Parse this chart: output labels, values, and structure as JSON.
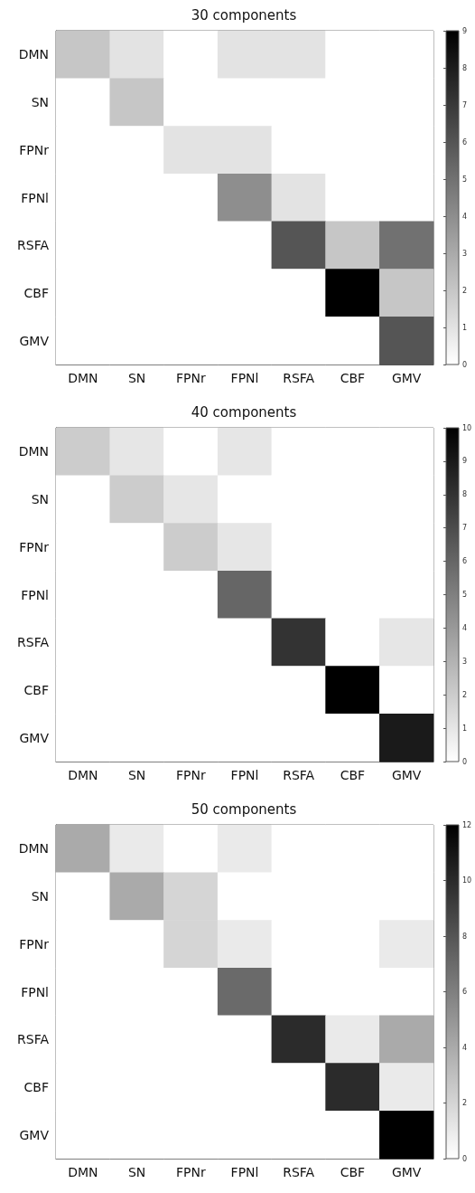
{
  "chart_data": [
    {
      "type": "heatmap",
      "title": "30 components",
      "categories": [
        "DMN",
        "SN",
        "FPNr",
        "FPNl",
        "RSFA",
        "CBF",
        "GMV"
      ],
      "y_categories": [
        "DMN",
        "SN",
        "FPNr",
        "FPNl",
        "RSFA",
        "CBF",
        "GMV"
      ],
      "cells": [
        [
          2,
          1,
          0,
          1,
          1,
          0,
          0
        ],
        [
          0,
          2,
          0,
          0,
          0,
          0,
          0
        ],
        [
          0,
          0,
          1,
          1,
          0,
          0,
          0
        ],
        [
          0,
          0,
          0,
          4,
          1,
          0,
          0
        ],
        [
          0,
          0,
          0,
          0,
          6,
          2,
          5
        ],
        [
          0,
          0,
          0,
          0,
          0,
          9,
          2
        ],
        [
          0,
          0,
          0,
          0,
          0,
          0,
          6
        ]
      ],
      "clim": [
        0,
        9
      ],
      "cticks": [
        0,
        1,
        2,
        3,
        4,
        5,
        6,
        7,
        8,
        9
      ]
    },
    {
      "type": "heatmap",
      "title": "40 components",
      "categories": [
        "DMN",
        "SN",
        "FPNr",
        "FPNl",
        "RSFA",
        "CBF",
        "GMV"
      ],
      "y_categories": [
        "DMN",
        "SN",
        "FPNr",
        "FPNl",
        "RSFA",
        "CBF",
        "GMV"
      ],
      "cells": [
        [
          2,
          1,
          0,
          1,
          0,
          0,
          0
        ],
        [
          0,
          2,
          1,
          0,
          0,
          0,
          0
        ],
        [
          0,
          0,
          2,
          1,
          0,
          0,
          0
        ],
        [
          0,
          0,
          0,
          6,
          0,
          0,
          0
        ],
        [
          0,
          0,
          0,
          0,
          8,
          0,
          1
        ],
        [
          0,
          0,
          0,
          0,
          0,
          10,
          0
        ],
        [
          0,
          0,
          0,
          0,
          0,
          0,
          9
        ]
      ],
      "clim": [
        0,
        10
      ],
      "cticks": [
        0,
        1,
        2,
        3,
        4,
        5,
        6,
        7,
        8,
        9,
        10
      ]
    },
    {
      "type": "heatmap",
      "title": "50 components",
      "categories": [
        "DMN",
        "SN",
        "FPNr",
        "FPNl",
        "RSFA",
        "CBF",
        "GMV"
      ],
      "y_categories": [
        "DMN",
        "SN",
        "FPNr",
        "FPNl",
        "RSFA",
        "CBF",
        "GMV"
      ],
      "cells": [
        [
          4,
          1,
          0,
          1,
          0,
          0,
          0
        ],
        [
          0,
          4,
          2,
          0,
          0,
          0,
          0
        ],
        [
          0,
          0,
          2,
          1,
          0,
          0,
          1
        ],
        [
          0,
          0,
          0,
          7,
          0,
          0,
          0
        ],
        [
          0,
          0,
          0,
          0,
          10,
          1,
          4
        ],
        [
          0,
          0,
          0,
          0,
          0,
          10,
          1
        ],
        [
          0,
          0,
          0,
          0,
          0,
          0,
          12
        ]
      ],
      "clim": [
        0,
        12
      ],
      "cticks": [
        0,
        2,
        4,
        6,
        8,
        10,
        12
      ]
    }
  ]
}
